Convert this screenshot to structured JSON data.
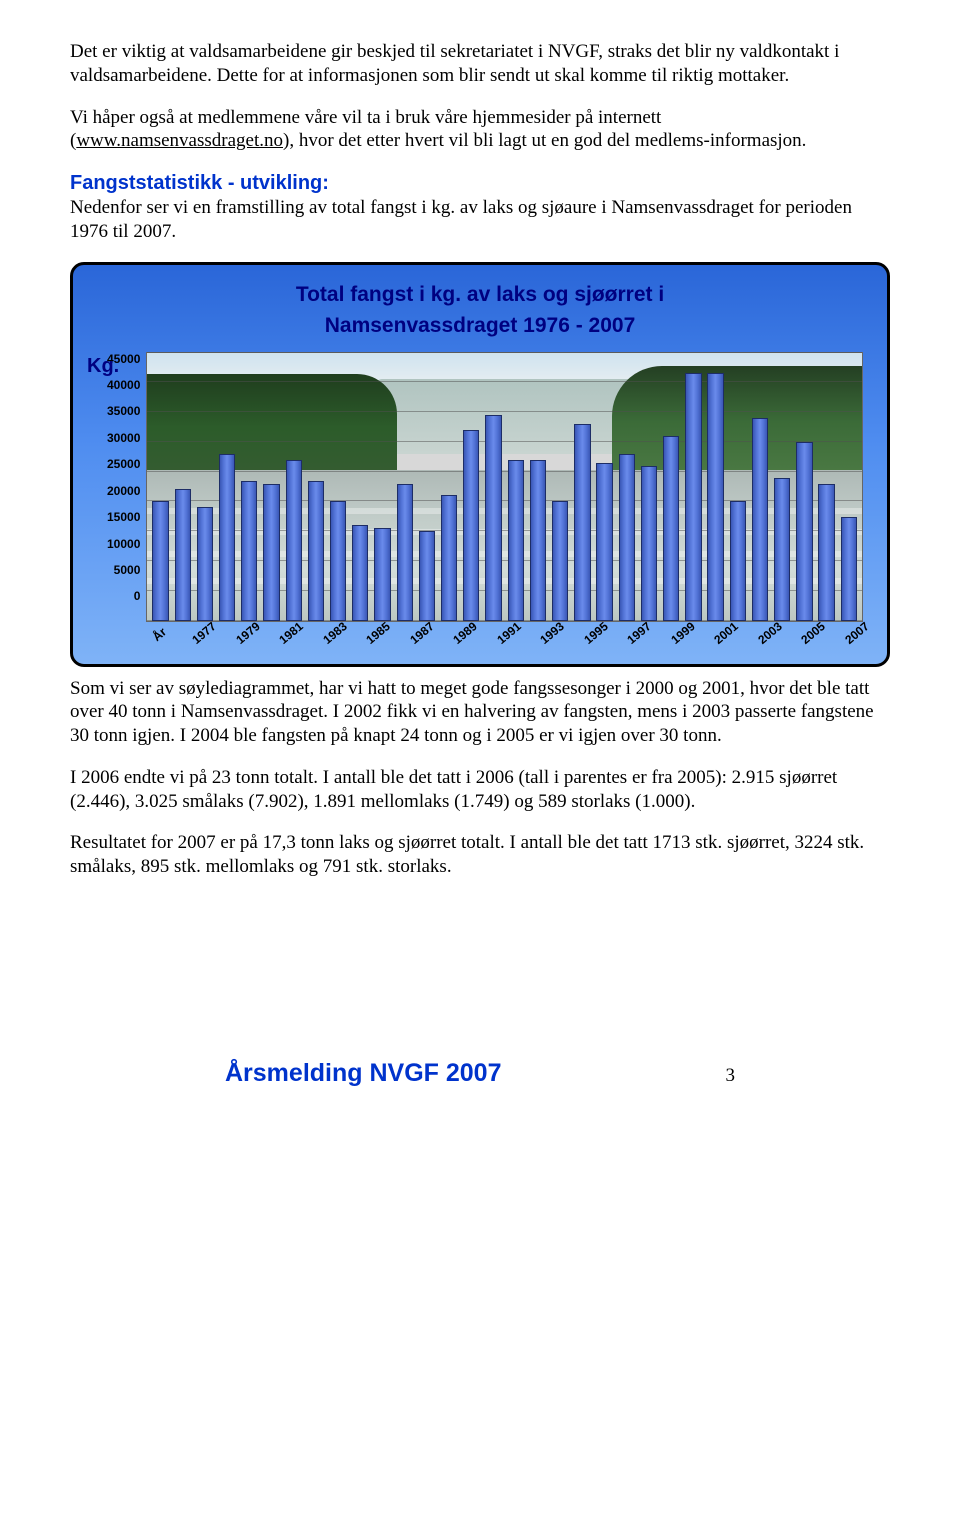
{
  "paragraphs": {
    "p1": "Det er viktig at valdsamarbeidene gir beskjed til sekretariatet i NVGF, straks det blir ny valdkontakt i valdsamarbeidene. Dette for at informasjonen som blir sendt ut skal komme til riktig mottaker.",
    "p2a": "Vi håper også at medlemmene våre vil ta i bruk våre hjemmesider på internett (",
    "p2link": "www.namsenvassdraget.no",
    "p2b": "), hvor det etter hvert vil bli lagt ut en god del medlems-informasjon.",
    "p3_head": "Fangststatistikk - utvikling:",
    "p3_body": "Nedenfor ser vi en framstilling av total fangst i kg. av laks og sjøaure i Namsenvassdraget for perioden 1976 til 2007.",
    "p4": "Som vi ser av søylediagrammet, har vi hatt to meget gode fangssesonger i 2000 og 2001, hvor det ble tatt over 40 tonn i Namsenvassdraget. I 2002 fikk vi en halvering av fangsten, mens i 2003 passerte fangstene 30 tonn igjen. I 2004 ble fangsten på knapt 24 tonn og i 2005 er vi igjen over 30 tonn.",
    "p5": "I 2006 endte vi på 23 tonn totalt. I antall ble det tatt i 2006 (tall i parentes er fra 2005): 2.915 sjøørret (2.446), 3.025 smålaks (7.902), 1.891 mellomlaks (1.749) og 589 storlaks (1.000).",
    "p6": "Resultatet for 2007 er på 17,3 tonn laks og sjøørret totalt. I antall ble det tatt 1713 stk. sjøørret, 3224 stk. smålaks, 895 stk. mellomlaks og 791 stk. storlaks."
  },
  "chart": {
    "title_line1": "Total fangst i kg. av laks og sjøørret i",
    "title_line2": "Namsenvassdraget 1976 - 2007",
    "y_axis_label": "Kg.",
    "y_ticks": [
      "45000",
      "40000",
      "35000",
      "30000",
      "25000",
      "20000",
      "15000",
      "10000",
      "5000",
      "0"
    ],
    "y_max": 45000,
    "x_label_first": "År",
    "x_labels": [
      "1977",
      "1979",
      "1981",
      "1983",
      "1985",
      "1987",
      "1989",
      "1991",
      "1993",
      "1995",
      "1997",
      "1999",
      "2001",
      "2003",
      "2005",
      "2007"
    ],
    "values": [
      20000,
      22000,
      19000,
      28000,
      23500,
      23000,
      27000,
      23500,
      20000,
      16000,
      15500,
      23000,
      15000,
      21000,
      32000,
      34500,
      27000,
      27000,
      20000,
      33000,
      26500,
      28000,
      26000,
      31000,
      41500,
      41500,
      20000,
      34000,
      24000,
      30000,
      23000,
      17300
    ],
    "bar_color": "#5273d6",
    "bar_border": "#1d2d66",
    "grid_color": "#707070",
    "bg_gradient_top": "#2a66d8",
    "bg_gradient_bottom": "#7fb3f7",
    "panel_border": "#000000",
    "panel_radius": 14,
    "font_title": "Comic Sans MS",
    "font_title_color": "#000080",
    "font_title_size": 21,
    "tick_font": "Arial",
    "tick_font_size": 12
  },
  "footer": {
    "title": "Årsmelding NVGF 2007",
    "page": "3"
  }
}
